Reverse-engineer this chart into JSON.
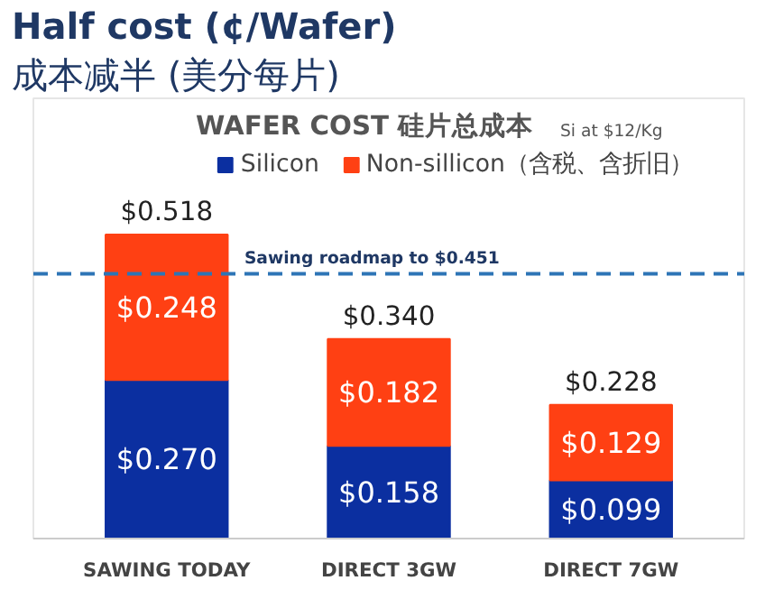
{
  "chart_data": {
    "type": "bar",
    "title": "Half cost (¢/Wafer)",
    "subtitle": "成本减半 (美分每片)",
    "annotations": [
      "WAFER COST 硅片总成本",
      "Si at $12/Kg"
    ],
    "categories": [
      "SAWING TODAY",
      "DIRECT 3GW",
      "DIRECT 7GW"
    ],
    "stacked": true,
    "series": [
      {
        "name": "Silicon",
        "color": "#0b2fa0",
        "values": [
          0.27,
          0.158,
          0.099
        ],
        "value_labels": [
          "$0.270",
          "$0.158",
          "$0.099"
        ]
      },
      {
        "name": "Non-sillicon（含税、含折旧）",
        "color": "#ff4013",
        "values": [
          0.248,
          0.182,
          0.129
        ],
        "value_labels": [
          "$0.248",
          "$0.182",
          "$0.129"
        ]
      }
    ],
    "totals": [
      "$0.518",
      "$0.340",
      "$0.228"
    ],
    "ref_lines": [
      {
        "axis": "y",
        "value": 0.451,
        "label": "Sawing roadmap to $0.451",
        "color": "#2e75b6",
        "line_style": "dashed"
      }
    ],
    "ylim": [
      0,
      0.75
    ],
    "tick_labels": "x",
    "grid": false,
    "legend": "top right"
  }
}
